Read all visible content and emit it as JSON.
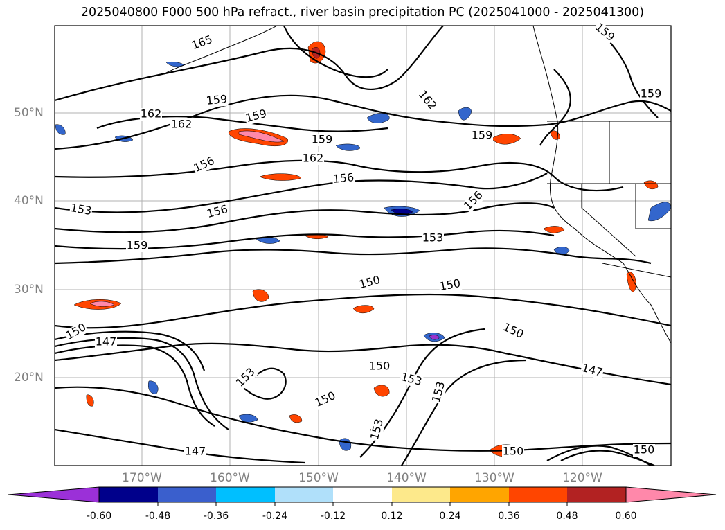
{
  "title": "2025040800 F000 500 hPa refract., river basin precipitation PC (2025041000 - 2025041300)",
  "map": {
    "lat_labels": [
      "50°N",
      "40°N",
      "30°N",
      "20°N"
    ],
    "lon_labels": [
      "170°W",
      "160°W",
      "150°W",
      "140°W",
      "130°W",
      "120°W"
    ],
    "contour_labels": [
      "165",
      "159",
      "162",
      "162",
      "159",
      "162",
      "159",
      "159",
      "162",
      "159",
      "156",
      "156",
      "156",
      "156",
      "153",
      "159",
      "153",
      "150",
      "150",
      "150",
      "147",
      "150",
      "153",
      "150",
      "147",
      "153",
      "153",
      "150",
      "147",
      "150",
      "153",
      "150",
      "159"
    ],
    "precip_anomaly_blobs": {
      "positive_colors": [
        "#fde98b",
        "#ffa500",
        "#ff4500",
        "#b22222",
        "#ff88aa"
      ],
      "negative_colors": [
        "#add8f8",
        "#00bfff",
        "#3366cc",
        "#00008b",
        "#9932cc"
      ]
    }
  },
  "colorbar": {
    "ticks": [
      "-0.60",
      "-0.48",
      "-0.36",
      "-0.24",
      "-0.12",
      "0.12",
      "0.24",
      "0.36",
      "0.48",
      "0.60"
    ],
    "colors": [
      "#9b30d8",
      "#00008b",
      "#3a5fcd",
      "#00bfff",
      "#b0e0fa",
      "#ffffff",
      "#fde98b",
      "#ffa500",
      "#ff4500",
      "#b22222",
      "#ff88aa",
      "#ff88aa"
    ],
    "extend": "both"
  }
}
